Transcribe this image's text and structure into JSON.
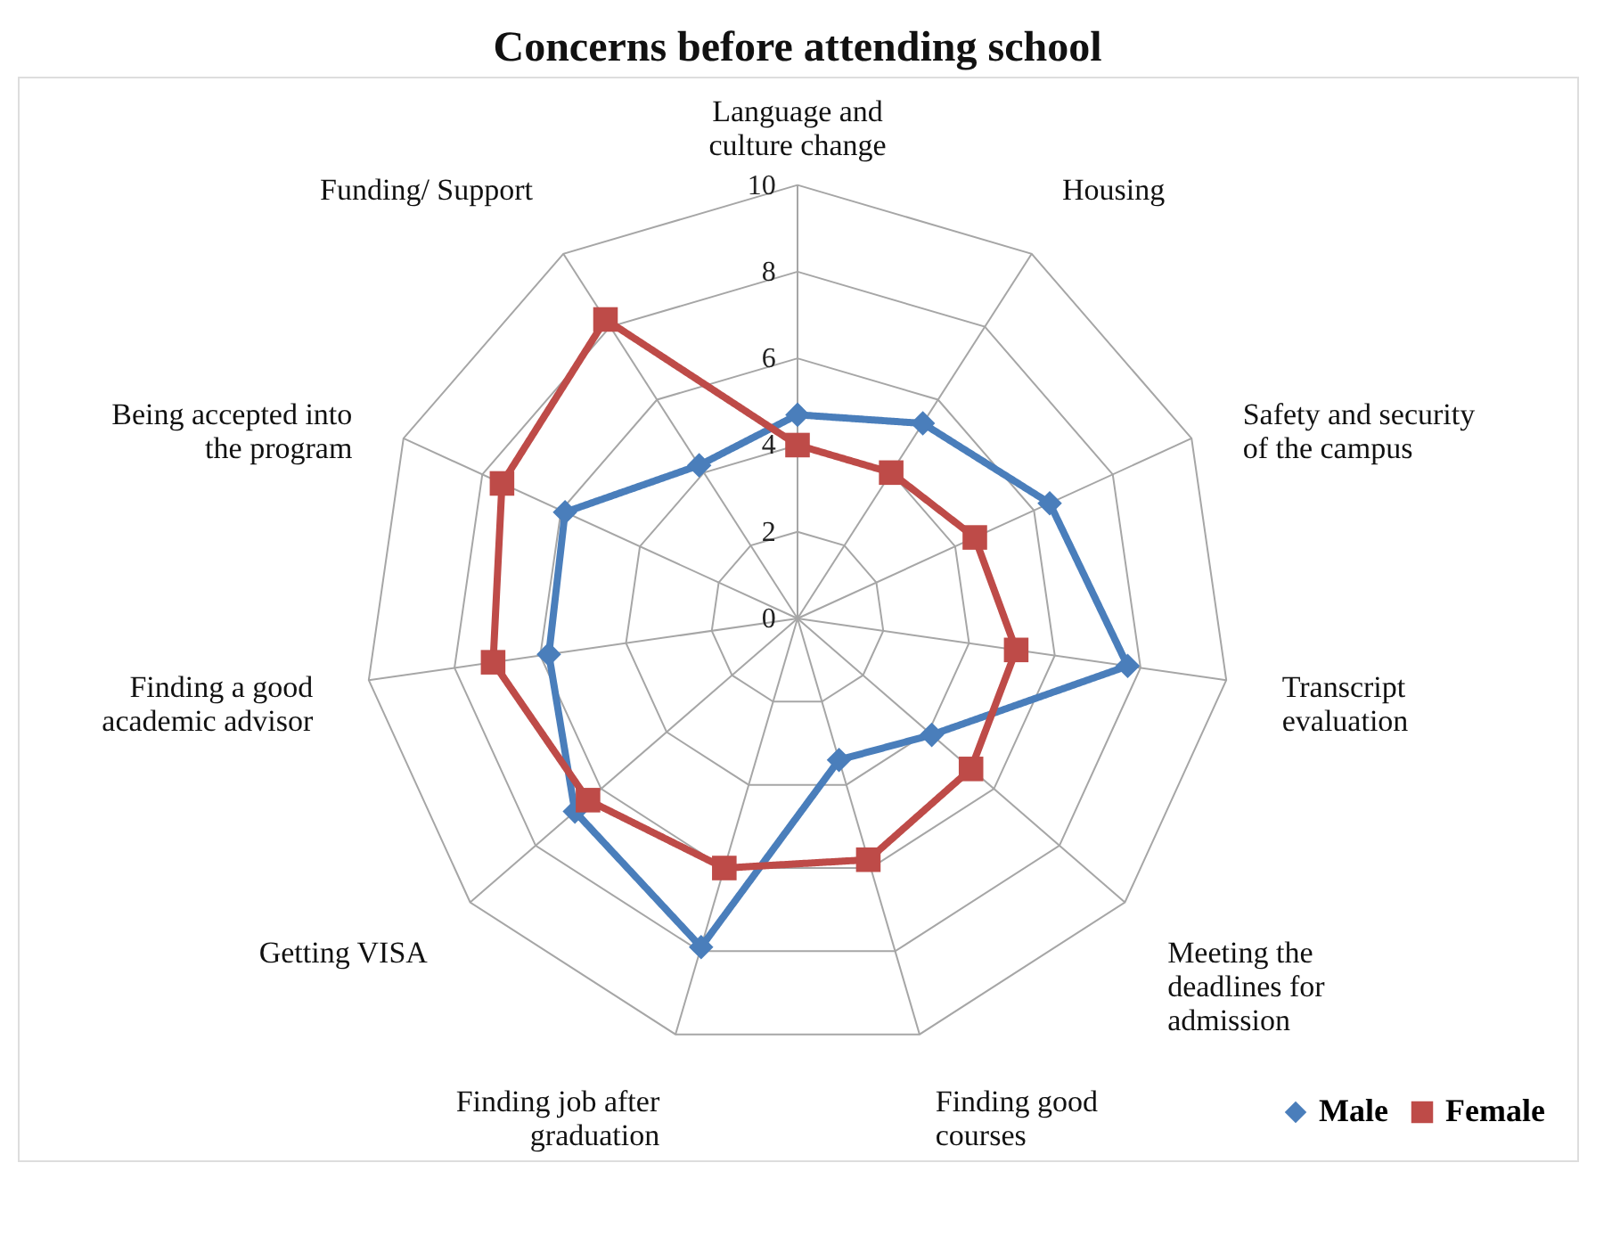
{
  "chart_data": {
    "type": "radar",
    "title": "Concerns before attending school",
    "categories": [
      "Language and culture change",
      "Housing",
      "Safety and security of the campus",
      "Transcript evaluation",
      "Meeting the deadlines for admission",
      "Finding good courses",
      "Finding job after graduation",
      "Getting VISA",
      "Finding a good academic advisor",
      "Being accepted into the program",
      "Funding/ Support"
    ],
    "series": [
      {
        "name": "Male",
        "color": "#4a7ebb",
        "marker": "diamond",
        "values": [
          4.7,
          5.35,
          6.4,
          7.7,
          4.1,
          3.4,
          7.9,
          6.8,
          5.8,
          5.9,
          4.2
        ]
      },
      {
        "name": "Female",
        "color": "#be4b48",
        "marker": "square",
        "values": [
          4.0,
          4.0,
          4.5,
          5.1,
          5.3,
          5.8,
          6.0,
          6.4,
          7.1,
          7.5,
          8.2
        ]
      }
    ],
    "ylim": [
      0,
      10
    ],
    "yticks": [
      0,
      2,
      4,
      6,
      8,
      10
    ],
    "grid": true,
    "legend": "bottom right",
    "line_style": "solid"
  }
}
